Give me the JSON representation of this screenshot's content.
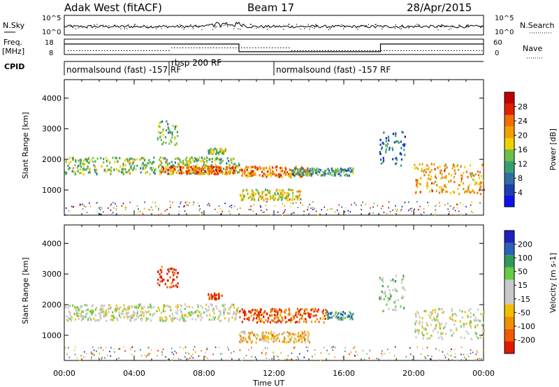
{
  "header": {
    "radar": "Adak West (fitACF)",
    "beam": "Beam 17",
    "date": "28/Apr/2015"
  },
  "top_panels": {
    "nsky_label": "N.Sky",
    "nsearch_label": "N.Search",
    "nsky_ticks": [
      "10^5",
      "10^0"
    ],
    "nsearch_ticks": [
      "10^5",
      "10^0"
    ],
    "freq_label": "Freq.",
    "freq_unit": "[MHz]",
    "freq_ticks": [
      "18",
      "8"
    ],
    "nave_label": "Nave",
    "nave_ticks": [
      "60",
      "0"
    ],
    "cpid_label": "CPID",
    "cpid_segments": [
      {
        "text": "normalsound (fast) -157 RF",
        "x": 0.0
      },
      {
        "text": "rbsp 200 RF",
        "x": 6.0
      },
      {
        "text": "normalsound (fast) -157 RF",
        "x": 12.0
      }
    ]
  },
  "colors": {
    "power": [
      "#1010f0",
      "#1c3fb0",
      "#2f6fa0",
      "#3a9f6e",
      "#6fbf4a",
      "#f0d000",
      "#f0a000",
      "#f07000",
      "#e02000",
      "#c00000"
    ],
    "velocity": [
      "#2020c0",
      "#2a62b8",
      "#2f9a5a",
      "#66cc44",
      "#c8c8c8",
      "#c8c8c8",
      "#f0c000",
      "#f09000",
      "#f05a00",
      "#e01a00"
    ]
  },
  "chart_data": [
    {
      "type": "heatmap",
      "name": "power",
      "ylabel": "Slant Range [km]",
      "xlabel": "Time UT",
      "x_ticks": [
        "00:00",
        "04:00",
        "08:00",
        "12:00",
        "16:00",
        "20:00",
        "00:00"
      ],
      "xlim": [
        0,
        24
      ],
      "ylim": [
        180,
        4600
      ],
      "y_ticks": [
        1000,
        2000,
        3000,
        4000
      ],
      "colorbar_label": "Power [dB]",
      "colorbar_ticks": [
        4,
        8,
        12,
        16,
        20,
        24,
        28
      ],
      "colorbar_range": [
        0,
        30
      ],
      "regions": [
        {
          "t0": 0.0,
          "t1": 10.0,
          "r0": 1550,
          "r1": 2100,
          "level": 0.45
        },
        {
          "t0": 5.5,
          "t1": 9.8,
          "r0": 1550,
          "r1": 1800,
          "level": 0.75
        },
        {
          "t0": 10.0,
          "t1": 14.0,
          "r0": 1450,
          "r1": 1800,
          "level": 0.7
        },
        {
          "t0": 10.0,
          "t1": 13.5,
          "r0": 700,
          "r1": 1050,
          "level": 0.55
        },
        {
          "t0": 13.0,
          "t1": 16.5,
          "r0": 1500,
          "r1": 1750,
          "level": 0.35
        },
        {
          "t0": 20.0,
          "t1": 24.0,
          "r0": 900,
          "r1": 1900,
          "level": 0.65
        },
        {
          "t0": 5.3,
          "t1": 6.5,
          "r0": 2500,
          "r1": 3300,
          "level": 0.4
        },
        {
          "t0": 8.2,
          "t1": 9.2,
          "r0": 2200,
          "r1": 2400,
          "level": 0.45
        },
        {
          "t0": 18.0,
          "t1": 19.5,
          "r0": 1800,
          "r1": 3000,
          "level": 0.25
        }
      ]
    },
    {
      "type": "heatmap",
      "name": "velocity",
      "ylabel": "Slant Range [km]",
      "xlabel": "Time UT",
      "x_ticks": [
        "00:00",
        "04:00",
        "08:00",
        "12:00",
        "16:00",
        "20:00",
        "00:00"
      ],
      "xlim": [
        0,
        24
      ],
      "ylim": [
        180,
        4600
      ],
      "y_ticks": [
        1000,
        2000,
        3000,
        4000
      ],
      "colorbar_label": "Velocity [m s-1]",
      "colorbar_ticks": [
        "200",
        "100",
        "50",
        "15",
        "-15",
        "-50",
        "-100",
        "-200"
      ],
      "regions": [
        {
          "t0": 0.0,
          "t1": 10.0,
          "r0": 1500,
          "r1": 2050,
          "level": 0.5
        },
        {
          "t0": 10.0,
          "t1": 15.0,
          "r0": 1450,
          "r1": 1900,
          "level": 0.85
        },
        {
          "t0": 10.0,
          "t1": 14.0,
          "r0": 800,
          "r1": 1150,
          "level": 0.65
        },
        {
          "t0": 15.0,
          "t1": 16.5,
          "r0": 1550,
          "r1": 1800,
          "level": 0.3
        },
        {
          "t0": 20.0,
          "t1": 24.0,
          "r0": 900,
          "r1": 1900,
          "level": 0.5
        },
        {
          "t0": 5.3,
          "t1": 6.5,
          "r0": 2600,
          "r1": 3300,
          "level": 0.95
        },
        {
          "t0": 8.2,
          "t1": 9.0,
          "r0": 2200,
          "r1": 2400,
          "level": 0.9
        },
        {
          "t0": 18.0,
          "t1": 19.5,
          "r0": 1800,
          "r1": 3000,
          "level": 0.4
        }
      ]
    }
  ]
}
